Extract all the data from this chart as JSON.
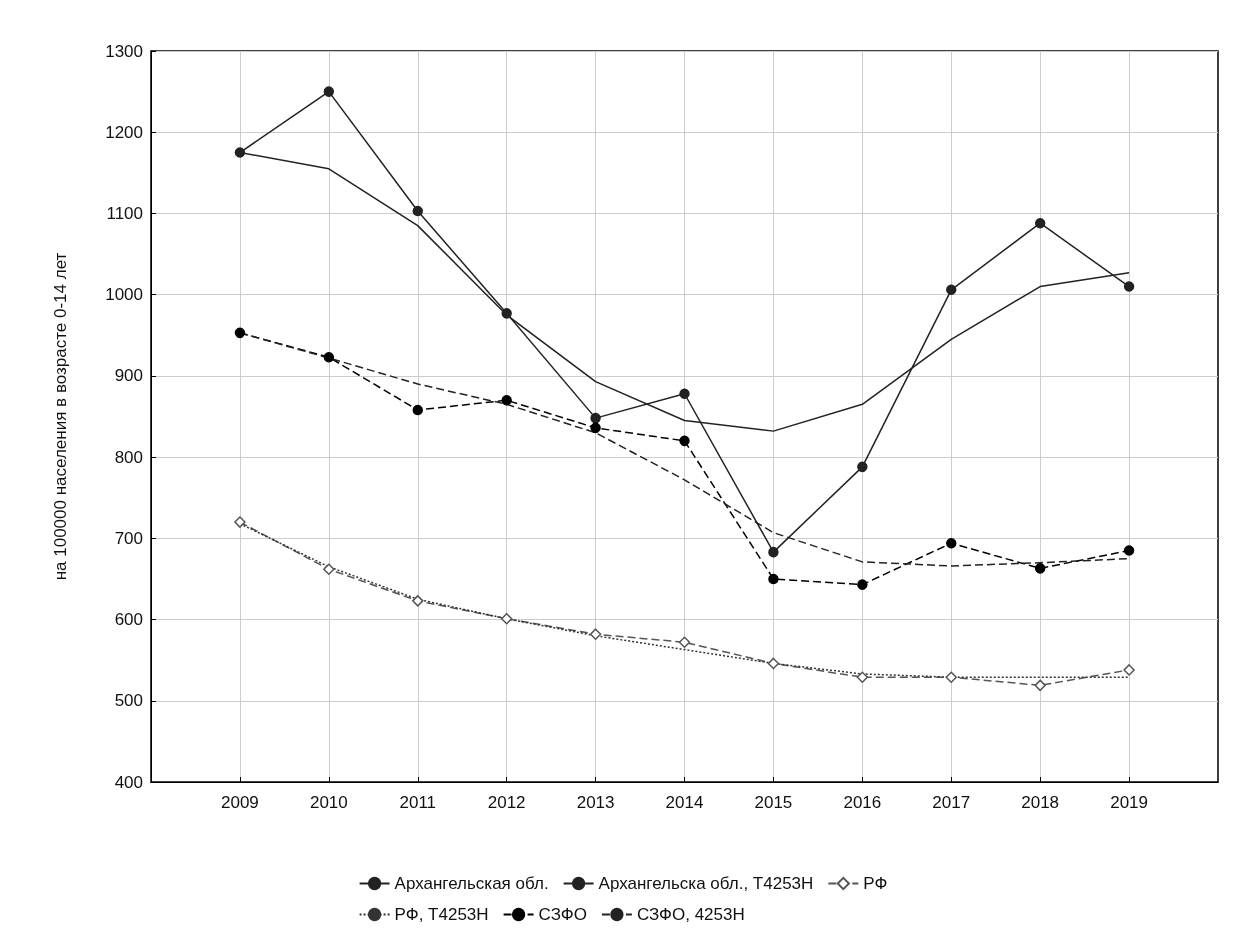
{
  "chart_data": {
    "type": "line",
    "ylabel": "на 100000 населения в возрасте 0-14 лет",
    "x": [
      2009,
      2010,
      2011,
      2012,
      2013,
      2014,
      2015,
      2016,
      2017,
      2018,
      2019
    ],
    "xlim": [
      2008,
      2020
    ],
    "xticks": [
      2009,
      2010,
      2011,
      2012,
      2013,
      2014,
      2015,
      2016,
      2017,
      2018,
      2019
    ],
    "ylim": [
      400,
      1300
    ],
    "yticks": [
      400,
      500,
      600,
      700,
      800,
      900,
      1000,
      1100,
      1200,
      1300
    ],
    "grid": true,
    "legend": "bottom",
    "series": [
      {
        "name": "Архангельская обл.",
        "color": "#222222",
        "marker": "circle",
        "line_style": "solid",
        "values": [
          1175,
          1250,
          1103,
          977,
          848,
          878,
          683,
          788,
          1006,
          1088,
          1010
        ]
      },
      {
        "name": "Архангельска обл., T4253H",
        "color": "#222222",
        "marker": "none",
        "line_style": "solid",
        "values": [
          1175,
          1155,
          1085,
          975,
          893,
          845,
          832,
          865,
          945,
          1010,
          1027
        ]
      },
      {
        "name": "РФ",
        "color": "#555555",
        "marker": "diamond",
        "line_style": "dashed",
        "values": [
          720,
          662,
          623,
          601,
          582,
          572,
          546,
          529,
          529,
          519,
          538
        ]
      },
      {
        "name": "РФ, T4253H",
        "color": "#333333",
        "marker": "none",
        "line_style": "dotted",
        "values": [
          718,
          665,
          625,
          601,
          580,
          563,
          546,
          533,
          529,
          529,
          529
        ]
      },
      {
        "name": "СЗФО",
        "color": "#000000",
        "marker": "circle",
        "line_style": "dashed",
        "values": [
          953,
          923,
          858,
          870,
          836,
          820,
          650,
          643,
          694,
          663,
          685
        ]
      },
      {
        "name": "СЗФО, 4253H",
        "color": "#222222",
        "marker": "none",
        "line_style": "dashed",
        "values": [
          953,
          922,
          890,
          865,
          830,
          772,
          707,
          671,
          666,
          670,
          675
        ]
      }
    ]
  }
}
